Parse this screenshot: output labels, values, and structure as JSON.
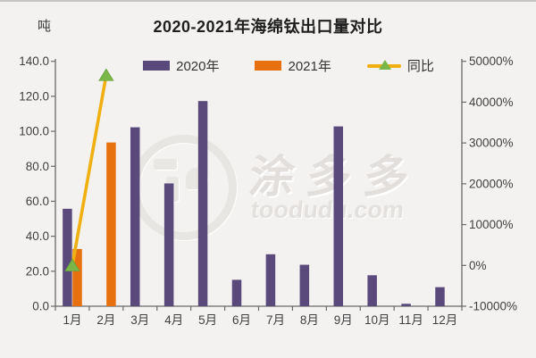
{
  "title": "2020-2021年海绵钛出口量对比",
  "left_axis_unit": "吨",
  "colors": {
    "bar_2020": "#5a4a7c",
    "bar_2021": "#e8710f",
    "yoy_line": "#f0b012",
    "yoy_marker": "#7ab648",
    "background": "#f3f2f0",
    "axis": "#6a6a6a",
    "tick_text": "#3f3f3f"
  },
  "legend": {
    "items": [
      {
        "label": "2020年",
        "kind": "bar",
        "color": "#5a4a7c"
      },
      {
        "label": "2021年",
        "kind": "bar",
        "color": "#e8710f"
      },
      {
        "label": "同比",
        "kind": "line",
        "color": "#f0b012",
        "marker_color": "#7ab648"
      }
    ]
  },
  "watermark": {
    "chinese": "涂多多",
    "domain": "toodudu.com"
  },
  "chart_data": {
    "type": "combo",
    "title": "2020-2021年海绵钛出口量对比",
    "categories": [
      "1月",
      "2月",
      "3月",
      "4月",
      "5月",
      "6月",
      "7月",
      "8月",
      "9月",
      "10月",
      "11月",
      "12月"
    ],
    "series": [
      {
        "name": "2020年",
        "kind": "bar",
        "axis": "left",
        "color": "#5a4a7c",
        "values": [
          55.7,
          null,
          102.3,
          70.2,
          117.3,
          15.1,
          29.7,
          23.7,
          102.8,
          17.7,
          1.4,
          10.9
        ]
      },
      {
        "name": "2021年",
        "kind": "bar",
        "axis": "left",
        "color": "#e8710f",
        "values": [
          32.7,
          93.6,
          null,
          null,
          null,
          null,
          null,
          null,
          null,
          null,
          null,
          null
        ]
      },
      {
        "name": "同比",
        "kind": "line",
        "axis": "right",
        "color": "#f0b012",
        "marker": "triangle-up",
        "marker_color": "#7ab648",
        "values": [
          -41,
          46600,
          null,
          null,
          null,
          null,
          null,
          null,
          null,
          null,
          null,
          null
        ]
      }
    ],
    "left_axis": {
      "unit": "吨",
      "min": 0,
      "max": 140,
      "step": 20,
      "tick_labels": [
        "0.0",
        "20.0",
        "40.0",
        "60.0",
        "80.0",
        "100.0",
        "120.0",
        "140.0"
      ]
    },
    "right_axis": {
      "min": -10000,
      "max": 50000,
      "step": 10000,
      "tick_labels": [
        "-10000%",
        "0%",
        "10000%",
        "20000%",
        "30000%",
        "40000%",
        "50000%"
      ]
    },
    "legend_position": "top",
    "grid": false
  }
}
